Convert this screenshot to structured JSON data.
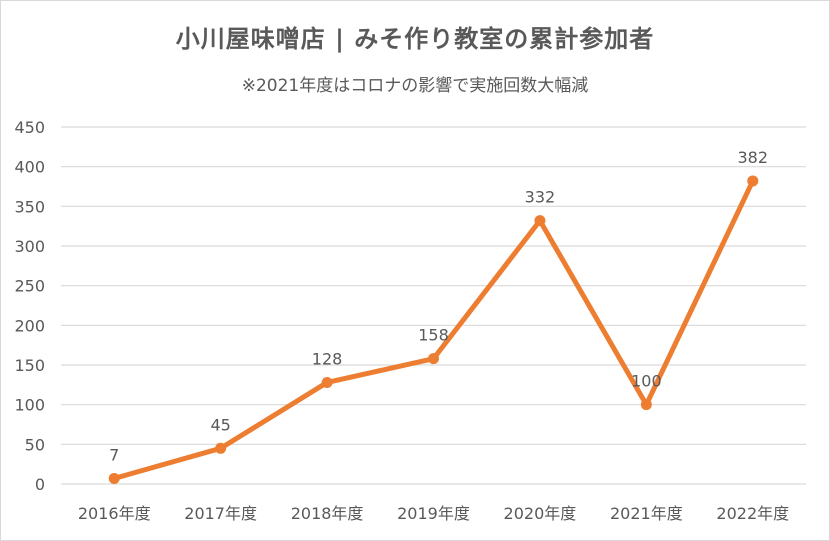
{
  "chart_data": {
    "type": "line",
    "title": "小川屋味噌店 | みそ作り教室の累計参加者",
    "subtitle": "※2021年度はコロナの影響で実施回数大幅減",
    "categories": [
      "2016年度",
      "2017年度",
      "2018年度",
      "2019年度",
      "2020年度",
      "2021年度",
      "2022年度"
    ],
    "series": [
      {
        "values": [
          7,
          45,
          128,
          158,
          332,
          100,
          382
        ]
      }
    ],
    "data_labels": [
      "7",
      "45",
      "128",
      "158",
      "332",
      "100",
      "382"
    ],
    "ylim": [
      0,
      450
    ],
    "yticks": [
      0,
      50,
      100,
      150,
      200,
      250,
      300,
      350,
      400,
      450
    ],
    "xlabel": "",
    "ylabel": "",
    "grid": true,
    "legend": "none",
    "colors": {
      "line": "#ED7D31",
      "grid": "#d9d9d9",
      "text": "#595959"
    }
  }
}
